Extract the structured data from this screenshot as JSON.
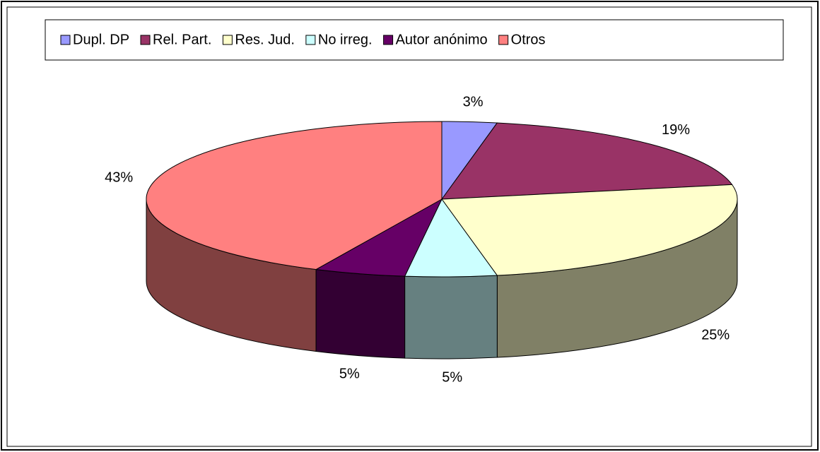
{
  "chart_data": {
    "type": "pie",
    "categories": [
      "Dupl. DP",
      "Rel. Part.",
      "Res. Jud.",
      "No irreg.",
      "Autor anónimo",
      "Otros"
    ],
    "values": [
      3,
      19,
      25,
      5,
      5,
      43
    ],
    "value_labels": [
      "3%",
      "19%",
      "25%",
      "5%",
      "5%",
      "43%"
    ],
    "colors": [
      "#9999ff",
      "#993366",
      "#ffffcc",
      "#ccffff",
      "#660066",
      "#ff8080"
    ],
    "legend": "top"
  }
}
